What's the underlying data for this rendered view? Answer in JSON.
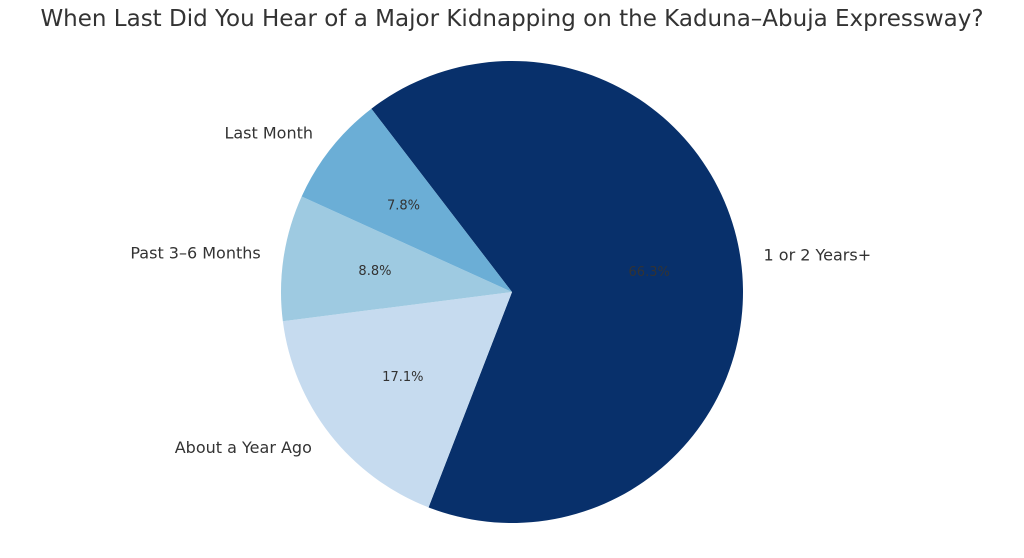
{
  "chart_data": {
    "type": "pie",
    "title": "When Last Did You Hear of a Major Kidnapping on the Kaduna–Abuja Expressway?",
    "slices": [
      {
        "label": "1 or 2 Years+",
        "value": 66.3,
        "pct_label": "66.3%",
        "color": "#08306b"
      },
      {
        "label": "About a Year Ago",
        "value": 17.1,
        "pct_label": "17.1%",
        "color": "#c6dbef"
      },
      {
        "label": "Past 3–6 Months",
        "value": 8.8,
        "pct_label": "8.8%",
        "color": "#9ecae1"
      },
      {
        "label": "Last Month",
        "value": 7.8,
        "pct_label": "7.8%",
        "color": "#6baed6"
      }
    ],
    "legend": "none"
  }
}
